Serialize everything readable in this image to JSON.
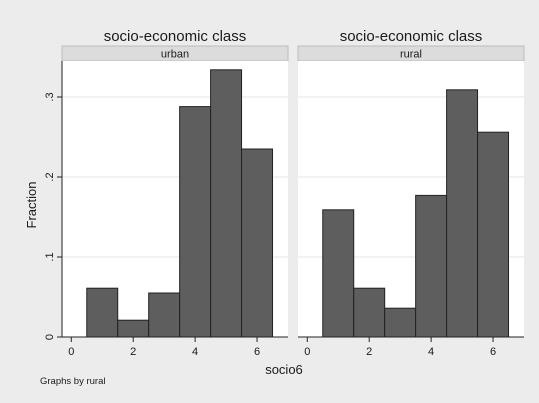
{
  "figure": {
    "ylabel": "Fraction",
    "xlabel": "socio6",
    "note": "Graphs by rural",
    "background": "#ececec",
    "plot_background": "#ffffff",
    "strip_background": "#dcdcdc",
    "bar_fill": "#5e5e5e",
    "bar_stroke": "#222222"
  },
  "chart_data": [
    {
      "type": "bar",
      "title": "socio-economic  class",
      "subtitle": "urban",
      "xlabel": "socio6",
      "ylabel": "Fraction",
      "x": [
        1,
        2,
        3,
        4,
        5,
        6
      ],
      "values": [
        0.061,
        0.021,
        0.055,
        0.288,
        0.334,
        0.235
      ],
      "xlim": [
        -0.3,
        7.0
      ],
      "ylim": [
        0,
        0.345
      ],
      "xticks": [
        0,
        2,
        4,
        6
      ],
      "yticks": [
        0,
        0.1,
        0.2,
        0.3
      ],
      "ytick_labels": [
        "0",
        ".1",
        ".2",
        ".3"
      ],
      "grid": true
    },
    {
      "type": "bar",
      "title": "socio-economic  class",
      "subtitle": "rural",
      "xlabel": "socio6",
      "ylabel": "Fraction",
      "x": [
        1,
        2,
        3,
        4,
        5,
        6
      ],
      "values": [
        0.159,
        0.061,
        0.036,
        0.177,
        0.309,
        0.256
      ],
      "xlim": [
        -0.3,
        7.0
      ],
      "ylim": [
        0,
        0.345
      ],
      "xticks": [
        0,
        2,
        4,
        6
      ],
      "yticks": [
        0,
        0.1,
        0.2,
        0.3
      ],
      "ytick_labels": [
        "0",
        ".1",
        ".2",
        ".3"
      ],
      "grid": true
    }
  ]
}
